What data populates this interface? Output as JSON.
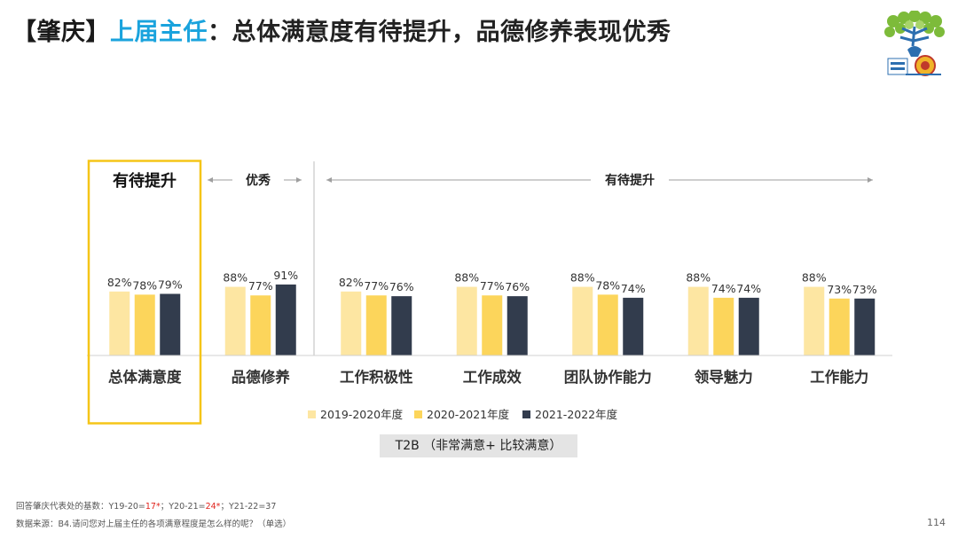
{
  "header": {
    "title_bracket_open": "【",
    "title_region": "肇庆",
    "title_bracket_close": "】",
    "title_highlight": "上届主任",
    "title_rest": "：总体满意度有待提升，品德修养表现优秀"
  },
  "chart_data": {
    "type": "bar",
    "categories": [
      "总体满意度",
      "品德修养",
      "工作积极性",
      "工作成效",
      "团队协作能力",
      "领导魅力",
      "工作能力"
    ],
    "series": [
      {
        "name": "2019-2020年度",
        "values": [
          82,
          88,
          82,
          88,
          88,
          88,
          88
        ],
        "color": "#fde6a2"
      },
      {
        "name": "2020-2021年度",
        "values": [
          78,
          77,
          77,
          77,
          78,
          74,
          73
        ],
        "color": "#fcd55b"
      },
      {
        "name": "2021-2022年度",
        "values": [
          79,
          91,
          76,
          76,
          74,
          74,
          73
        ],
        "color": "#323c4d"
      }
    ],
    "unit": "%",
    "ylim": [
      0,
      100
    ],
    "legend_position": "bottom",
    "group_labels": [
      {
        "text": "有待提升",
        "style": "boxed"
      },
      {
        "text": "优秀",
        "style": "arrows"
      },
      {
        "text": "有待提升",
        "style": "arrows"
      }
    ],
    "highlight_color": "#f5c518",
    "axis_caption": "T2B （非常满意+ 比较满意）"
  },
  "footer": {
    "base_prefix": "回答肇庆代表处的基数：Y19-20=",
    "base_v1": "17*",
    "base_mid1": "；Y20-21=",
    "base_v2": "24*",
    "base_mid2": "；Y21-22=37",
    "source": "数据来源：B4.请问您对上届主任的各项满意程度是怎么样的呢？（单选）",
    "page_number": "114"
  }
}
